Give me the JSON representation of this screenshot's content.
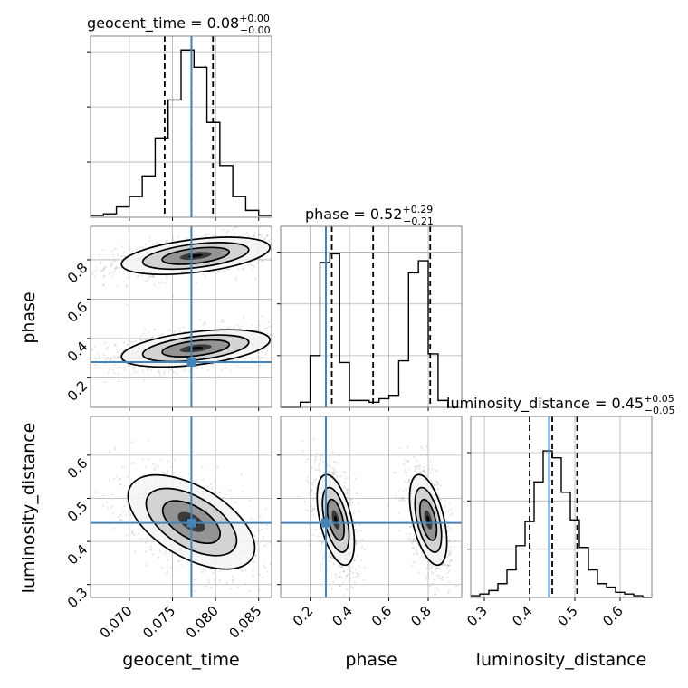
{
  "chart_data": {
    "type": "corner",
    "parameters": [
      "geocent_time",
      "phase",
      "luminosity_distance"
    ],
    "truth": {
      "geocent_time": 0.0772,
      "phase": 0.28,
      "luminosity_distance": 0.443
    },
    "colors": {
      "truth": "#4682b4",
      "hist": "#000000",
      "grid": "#b0b0b0",
      "scatter": "#888888"
    },
    "grid": true,
    "diagonal": [
      {
        "param": "geocent_time",
        "title_main": "geocent_time = 0.08",
        "title_sup": "+0.00",
        "title_sub": "−0.00",
        "bin_edges": [
          0.0655,
          0.067,
          0.0685,
          0.07,
          0.0715,
          0.073,
          0.0745,
          0.076,
          0.0775,
          0.079,
          0.0805,
          0.082,
          0.0835,
          0.085,
          0.0865
        ],
        "counts": [
          0.01,
          0.02,
          0.06,
          0.12,
          0.24,
          0.46,
          0.68,
          0.97,
          0.87,
          0.55,
          0.3,
          0.12,
          0.04,
          0.01
        ],
        "quantiles": [
          0.0741,
          0.0772,
          0.0797
        ],
        "xlim": [
          0.0655,
          0.0865
        ],
        "ylim": [
          0,
          1.05
        ],
        "ytick_values": [
          0.32,
          0.64,
          0.96
        ]
      },
      {
        "param": "phase",
        "title_main": "phase = 0.52",
        "title_sup": "+0.29",
        "title_sub": "−0.21",
        "bin_edges": [
          0.05,
          0.1,
          0.15,
          0.2,
          0.25,
          0.3,
          0.35,
          0.4,
          0.45,
          0.5,
          0.55,
          0.6,
          0.65,
          0.7,
          0.75,
          0.8,
          0.85,
          0.9,
          0.95
        ],
        "counts": [
          0.0,
          0.0,
          0.03,
          0.3,
          0.84,
          0.89,
          0.26,
          0.04,
          0.04,
          0.03,
          0.05,
          0.07,
          0.27,
          0.78,
          0.85,
          0.31,
          0.04,
          0.0
        ],
        "quantiles": [
          0.31,
          0.52,
          0.81
        ],
        "xlim": [
          0.05,
          0.97
        ],
        "ylim": [
          0,
          1.05
        ],
        "ytick_values": [
          0.3,
          0.6,
          0.9
        ]
      },
      {
        "param": "luminosity_distance",
        "title_main": "luminosity_distance = 0.45",
        "title_sup": "+0.05",
        "title_sub": "−0.05",
        "bin_edges": [
          0.27,
          0.29,
          0.31,
          0.33,
          0.35,
          0.37,
          0.39,
          0.41,
          0.43,
          0.45,
          0.47,
          0.49,
          0.51,
          0.53,
          0.55,
          0.57,
          0.59,
          0.61,
          0.63,
          0.65,
          0.67
        ],
        "counts": [
          0.01,
          0.02,
          0.04,
          0.08,
          0.16,
          0.3,
          0.44,
          0.67,
          0.85,
          0.81,
          0.61,
          0.45,
          0.29,
          0.16,
          0.08,
          0.06,
          0.03,
          0.02,
          0.01,
          0.0
        ],
        "quantiles": [
          0.4,
          0.45,
          0.505
        ],
        "xlim": [
          0.27,
          0.67
        ],
        "ylim": [
          0,
          1.05
        ],
        "ytick_values": [
          0.28,
          0.56,
          0.84
        ]
      }
    ],
    "axes": {
      "geocent_time": {
        "range": [
          0.0655,
          0.0865
        ],
        "ticks": [
          0.07,
          0.075,
          0.08,
          0.085
        ],
        "tick_labels": [
          "0.070",
          "0.075",
          "0.080",
          "0.085"
        ],
        "label": "geocent_time"
      },
      "phase": {
        "range": [
          0.05,
          0.97
        ],
        "ticks": [
          0.2,
          0.4,
          0.6,
          0.8
        ],
        "tick_labels": [
          "0.2",
          "0.4",
          "0.6",
          "0.8"
        ],
        "label": "phase"
      },
      "luminosity_distance": {
        "range": [
          0.27,
          0.69
        ],
        "ticks": [
          0.3,
          0.4,
          0.5,
          0.6
        ],
        "tick_labels": [
          "0.3",
          "0.4",
          "0.5",
          "0.6"
        ],
        "label": "luminosity_distance"
      }
    },
    "modes_2d": [
      {
        "x": "geocent_time",
        "y": "phase",
        "blobs": [
          {
            "cx": 0.0777,
            "cy": 0.82,
            "sx": 0.0041,
            "sy": 0.045,
            "rho": 0.45,
            "w": 1.0
          },
          {
            "cx": 0.0777,
            "cy": 0.35,
            "sx": 0.0041,
            "sy": 0.045,
            "rho": 0.45,
            "w": 1.0
          }
        ]
      },
      {
        "x": "geocent_time",
        "y": "luminosity_distance",
        "blobs": [
          {
            "cx": 0.0772,
            "cy": 0.445,
            "sx": 0.0035,
            "sy": 0.052,
            "rho": -0.55,
            "w": 1.0
          }
        ]
      },
      {
        "x": "phase",
        "y": "luminosity_distance",
        "blobs": [
          {
            "cx": 0.33,
            "cy": 0.45,
            "sx": 0.045,
            "sy": 0.05,
            "rho": -0.5,
            "w": 1.0
          },
          {
            "cx": 0.8,
            "cy": 0.45,
            "sx": 0.045,
            "sy": 0.05,
            "rho": -0.5,
            "w": 1.0
          }
        ]
      }
    ]
  }
}
